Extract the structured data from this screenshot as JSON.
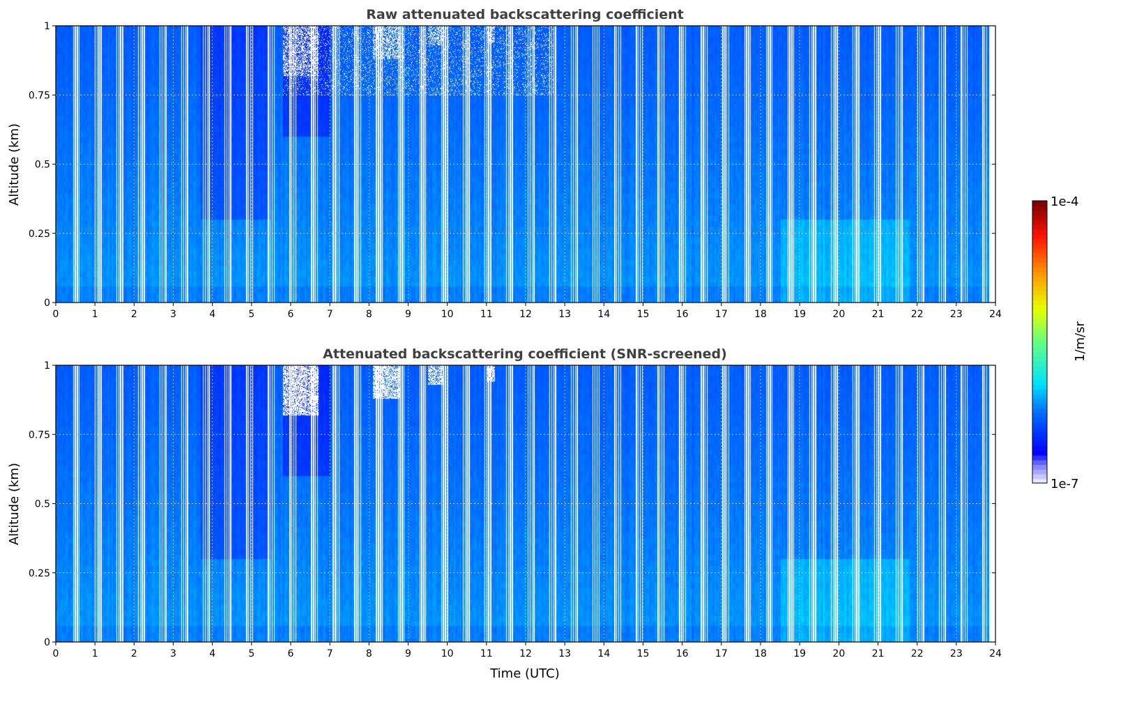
{
  "chart_data": [
    {
      "type": "heatmap",
      "title": "Raw attenuated backscattering coefficient",
      "xlabel": "",
      "ylabel": "Altitude (km)",
      "xlim": [
        0,
        24
      ],
      "ylim": [
        0,
        1
      ],
      "xticks": [
        "0",
        "1",
        "2",
        "3",
        "4",
        "5",
        "6",
        "7",
        "8",
        "9",
        "10",
        "11",
        "12",
        "13",
        "14",
        "15",
        "16",
        "17",
        "18",
        "19",
        "20",
        "21",
        "22",
        "23",
        "24"
      ],
      "yticks": [
        "0",
        "0.25",
        "0.5",
        "0.75",
        "1"
      ],
      "grid": true,
      "screened": false
    },
    {
      "type": "heatmap",
      "title": "Attenuated backscattering coefficient (SNR-screened)",
      "xlabel": "Time (UTC)",
      "ylabel": "Altitude (km)",
      "xlim": [
        0,
        24
      ],
      "ylim": [
        0,
        1
      ],
      "xticks": [
        "0",
        "1",
        "2",
        "3",
        "4",
        "5",
        "6",
        "7",
        "8",
        "9",
        "10",
        "11",
        "12",
        "13",
        "14",
        "15",
        "16",
        "17",
        "18",
        "19",
        "20",
        "21",
        "22",
        "23",
        "24"
      ],
      "yticks": [
        "0",
        "0.25",
        "0.5",
        "0.75",
        "1"
      ],
      "grid": true,
      "screened": true
    }
  ],
  "colorbar": {
    "label": "1/m/sr",
    "min_label": "1e-7",
    "max_label": "1e-4",
    "range": [
      1e-07,
      0.0001
    ],
    "scale": "log"
  },
  "data_gaps": {
    "period_h": 0.553,
    "start_h": 0.43,
    "width_h": 0.2,
    "end_h": 23.8
  }
}
